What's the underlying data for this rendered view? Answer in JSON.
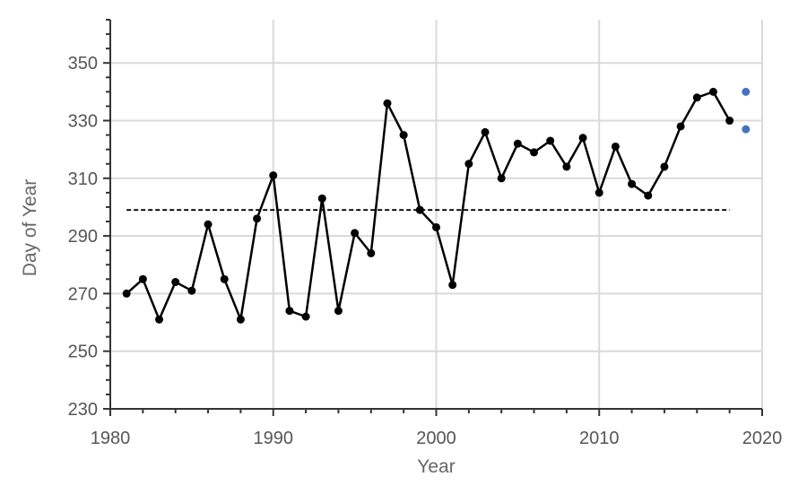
{
  "chart_data": {
    "type": "line",
    "title": "",
    "xlabel": "Year",
    "ylabel": "Day of Year",
    "xlim": [
      1980,
      2020
    ],
    "ylim": [
      230,
      365
    ],
    "x_ticks": [
      1980,
      1990,
      2000,
      2010,
      2020
    ],
    "y_ticks": [
      230,
      250,
      270,
      290,
      310,
      330,
      350
    ],
    "grid": true,
    "legend": "none",
    "series": [
      {
        "type": "line",
        "color": "#000000",
        "x": [
          1981,
          1982,
          1983,
          1984,
          1985,
          1986,
          1987,
          1988,
          1989,
          1990,
          1991,
          1992,
          1993,
          1994,
          1995,
          1996,
          1997,
          1998,
          1999,
          2000,
          2001,
          2002,
          2003,
          2004,
          2005,
          2006,
          2007,
          2008,
          2009,
          2010,
          2011,
          2012,
          2013,
          2014,
          2015,
          2016,
          2017,
          2018
        ],
        "values": [
          270,
          275,
          261,
          274,
          271,
          294,
          275,
          261,
          296,
          311,
          264,
          262,
          303,
          264,
          291,
          284,
          336,
          325,
          299,
          293,
          273,
          315,
          326,
          310,
          322,
          319,
          323,
          314,
          324,
          305,
          321,
          308,
          304,
          314,
          328,
          338,
          340,
          330
        ]
      },
      {
        "type": "dashed-line",
        "color": "#000000",
        "x": [
          1981,
          2018
        ],
        "values": [
          299,
          299
        ]
      },
      {
        "type": "scatter",
        "color": "#4472c4",
        "x": [
          2019,
          2019
        ],
        "values": [
          340,
          327
        ]
      }
    ]
  }
}
